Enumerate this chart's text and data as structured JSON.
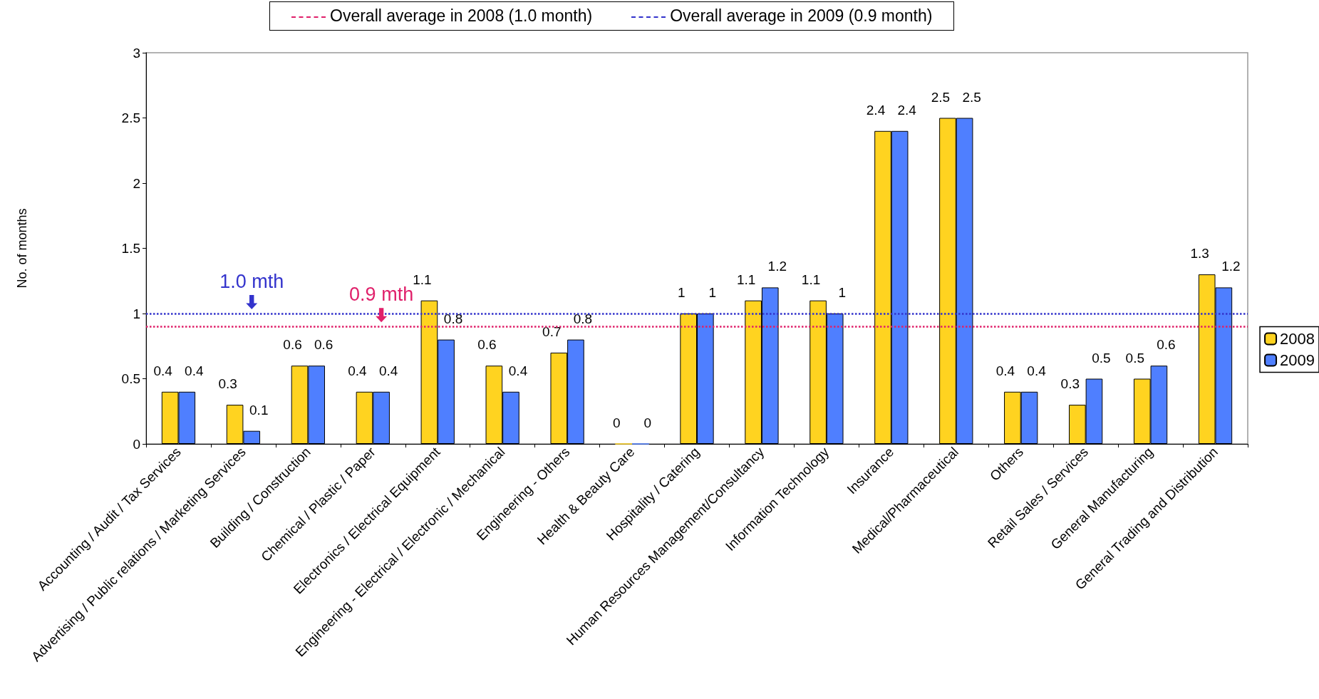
{
  "chart_data": {
    "type": "bar",
    "ylabel": "No. of months",
    "categories": [
      "Accounting / Audit / Tax Services",
      "Advertising / Public relations / Marketing Services",
      "Building / Construction",
      "Chemical / Plastic / Paper",
      "Electronics / Electrical Equipment",
      "Engineering - Electrical / Electronic / Mechanical",
      "Engineering - Others",
      "Health & Beauty Care",
      "Hospitality / Catering",
      "Human Resources Management/Consultancy",
      "Information Technology",
      "Insurance",
      "Medical/Pharmaceutical",
      "Others",
      "Retail Sales / Services",
      "General Manufacturing",
      "General Trading and Distribution"
    ],
    "series": [
      {
        "name": "2008",
        "color": "#ffd320",
        "values": [
          0.4,
          0.3,
          0.6,
          0.4,
          1.1,
          0.6,
          0.7,
          0,
          1,
          1.1,
          1.1,
          2.4,
          2.5,
          0.4,
          0.3,
          0.5,
          1.3
        ]
      },
      {
        "name": "2009",
        "color": "#4f7fff",
        "values": [
          0.4,
          0.1,
          0.6,
          0.4,
          0.8,
          0.4,
          0.8,
          0,
          1,
          1.2,
          1,
          2.4,
          2.5,
          0.4,
          0.5,
          0.6,
          1.2
        ]
      }
    ],
    "ylim": [
      0,
      3
    ],
    "yticks": [
      0,
      0.5,
      1,
      1.5,
      2,
      2.5,
      3
    ],
    "grid": false,
    "legend": "right",
    "data_labels": true,
    "ref_lines": [
      {
        "axis": "y",
        "value": 0.9,
        "label": "Overall average in 2008 (1.0 month)",
        "color": "#e0206a",
        "line_style": "dotted"
      },
      {
        "axis": "y",
        "value": 1,
        "label": "Overall average in 2009 (0.9 month)",
        "color": "#3333cc",
        "line_style": "dotted"
      }
    ],
    "annotations": [
      {
        "text": "1.0 mth",
        "x": "Advertising / Public relations / Marketing Services",
        "y": 1
      },
      {
        "text": "0.9 mth",
        "x": "Chemical / Plastic / Paper",
        "y": 0.9
      }
    ]
  }
}
